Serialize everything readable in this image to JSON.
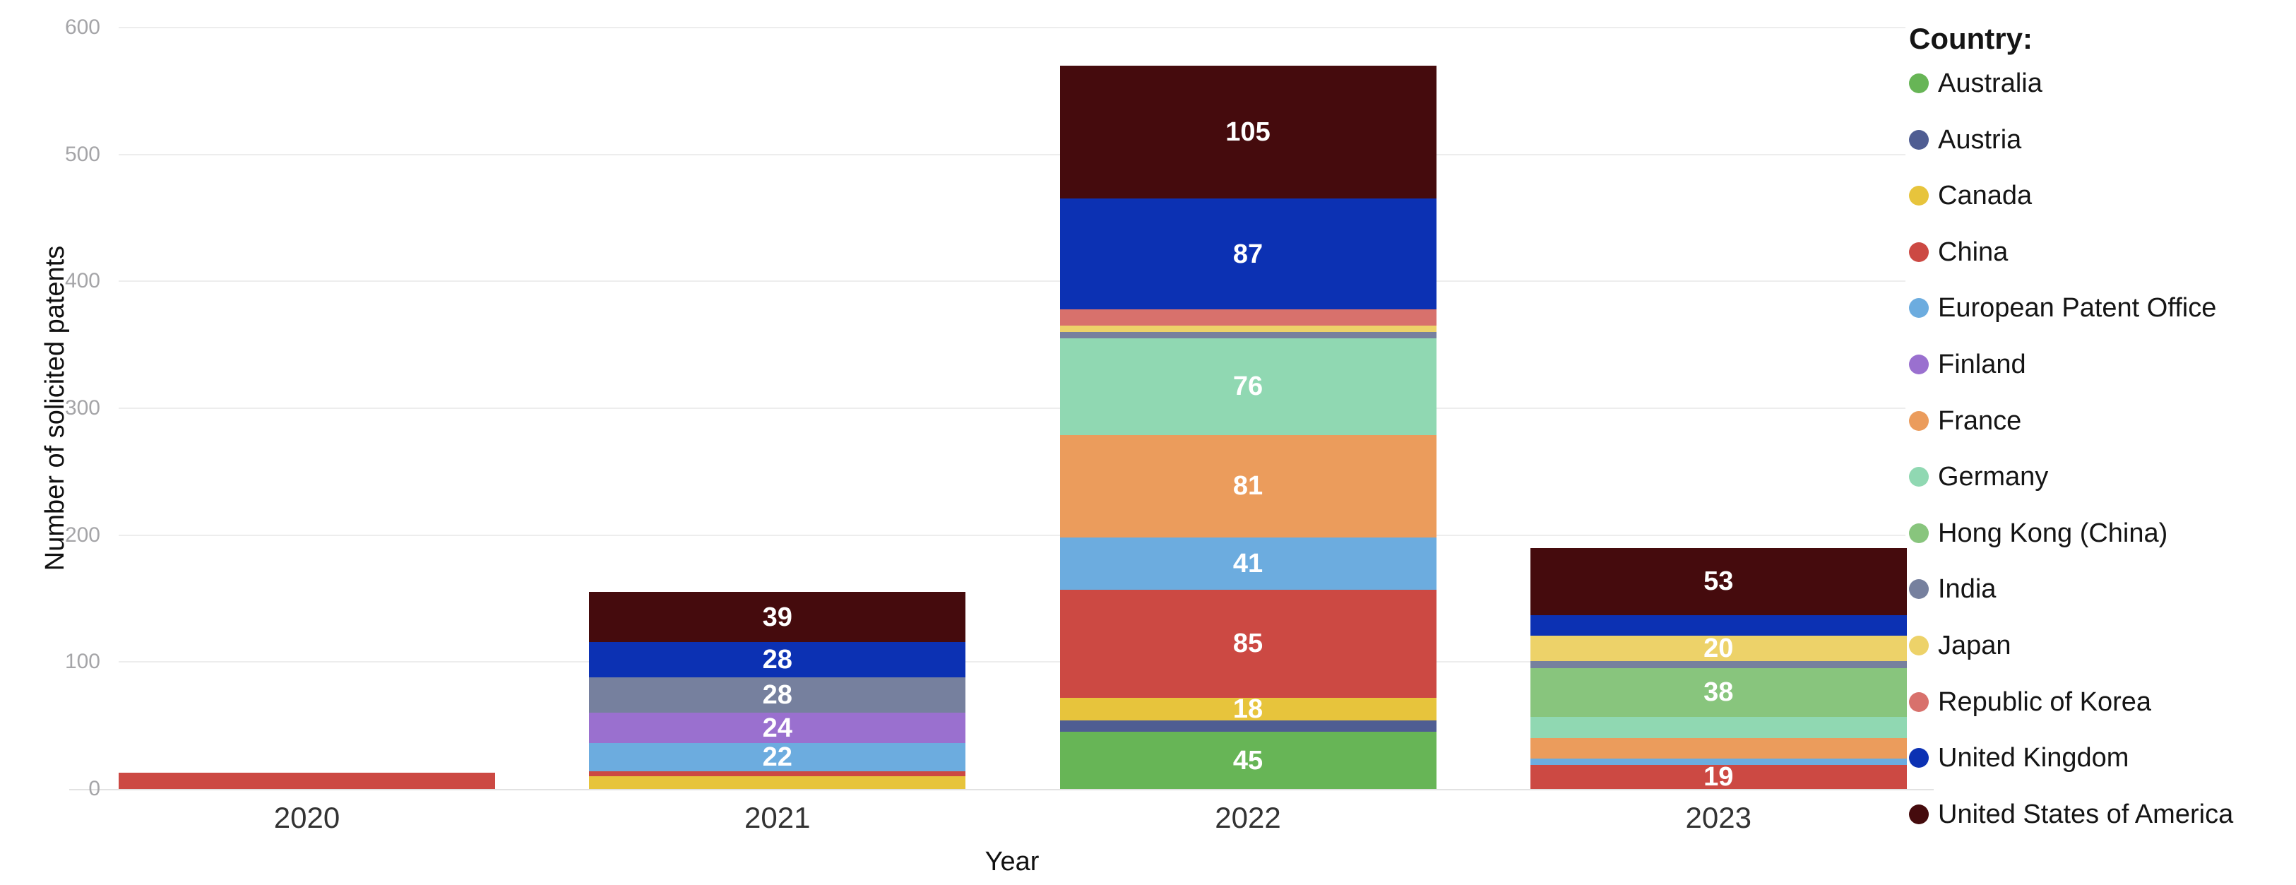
{
  "chart_data": {
    "type": "bar",
    "stacked": true,
    "xlabel": "Year",
    "ylabel": "Number of solicited patents",
    "legend_title": "Country:",
    "legend_position": "right",
    "grid": true,
    "ylim": [
      0,
      600
    ],
    "yticks": [
      0,
      100,
      200,
      300,
      400,
      500,
      600
    ],
    "categories": [
      "2020",
      "2021",
      "2022",
      "2023"
    ],
    "label_min_value": 18,
    "series": [
      {
        "name": "Australia",
        "color": "#67b556",
        "values": [
          0,
          0,
          45,
          0
        ]
      },
      {
        "name": "Austria",
        "color": "#4f5d92",
        "values": [
          0,
          0,
          9,
          0
        ]
      },
      {
        "name": "Canada",
        "color": "#e7c43c",
        "values": [
          0,
          10,
          18,
          0
        ]
      },
      {
        "name": "China",
        "color": "#cc4943",
        "values": [
          13,
          4,
          85,
          19
        ]
      },
      {
        "name": "European Patent Office",
        "color": "#6cacdf",
        "values": [
          0,
          22,
          41,
          5
        ]
      },
      {
        "name": "Finland",
        "color": "#9a70cf",
        "values": [
          0,
          24,
          0,
          0
        ]
      },
      {
        "name": "France",
        "color": "#eb9c5c",
        "values": [
          0,
          0,
          81,
          16
        ]
      },
      {
        "name": "Germany",
        "color": "#90d8b2",
        "values": [
          0,
          0,
          76,
          17
        ]
      },
      {
        "name": "Hong Kong (China)",
        "color": "#88c57d",
        "values": [
          0,
          0,
          0,
          38
        ]
      },
      {
        "name": "India",
        "color": "#76809e",
        "values": [
          0,
          28,
          5,
          6
        ]
      },
      {
        "name": "Japan",
        "color": "#edd269",
        "values": [
          0,
          0,
          5,
          20
        ]
      },
      {
        "name": "Republic of Korea",
        "color": "#d8716c",
        "values": [
          0,
          0,
          13,
          0
        ]
      },
      {
        "name": "United Kingdom",
        "color": "#0c31b3",
        "values": [
          0,
          28,
          87,
          16
        ]
      },
      {
        "name": "United States of America",
        "color": "#450b0d",
        "values": [
          0,
          39,
          105,
          53
        ]
      }
    ]
  }
}
